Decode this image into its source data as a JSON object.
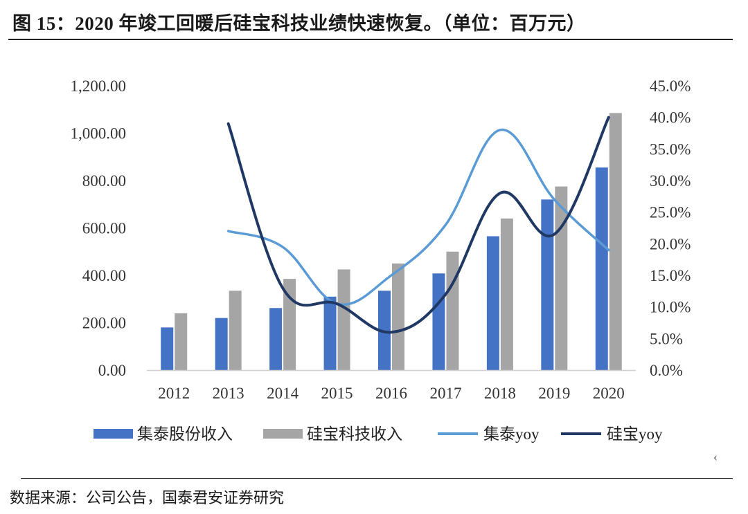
{
  "header": {
    "title": "图 15：2020 年竣工回暖后硅宝科技业绩快速恢复。（单位：百万元）"
  },
  "footer": {
    "source": "数据来源：公司公告，国泰君安证券研究",
    "mark": "‹"
  },
  "colors": {
    "jitai_bar": "#4472c4",
    "guibao_bar": "#a5a5a5",
    "jitai_line": "#5b9bd5",
    "guibao_line": "#203864"
  },
  "chart_data": {
    "type": "bar",
    "categories": [
      "2012",
      "2013",
      "2014",
      "2015",
      "2016",
      "2017",
      "2018",
      "2019",
      "2020"
    ],
    "y_left": {
      "range": [
        0,
        1200
      ],
      "ticks": [
        0,
        200,
        400,
        600,
        800,
        1000,
        1200
      ],
      "tick_labels": [
        "0.00",
        "200.00",
        "400.00",
        "600.00",
        "800.00",
        "1,000.00",
        "1,200.00"
      ]
    },
    "y_right": {
      "range": [
        0,
        45
      ],
      "ticks": [
        0,
        5,
        10,
        15,
        20,
        25,
        30,
        35,
        40,
        45
      ],
      "tick_labels": [
        "0.0%",
        "5.0%",
        "10.0%",
        "15.0%",
        "20.0%",
        "25.0%",
        "30.0%",
        "35.0%",
        "40.0%",
        "45.0%"
      ]
    },
    "series": [
      {
        "name": "集泰股份收入",
        "type": "bar",
        "axis": "left",
        "values": [
          180,
          220,
          262,
          310,
          335,
          408,
          565,
          720,
          855
        ]
      },
      {
        "name": "硅宝科技收入",
        "type": "bar",
        "axis": "left",
        "values": [
          240,
          335,
          385,
          425,
          450,
          500,
          640,
          775,
          1085
        ]
      },
      {
        "name": "集泰yoy",
        "type": "line",
        "axis": "right",
        "values": [
          null,
          22.0,
          19.5,
          10.5,
          15.0,
          23.0,
          38.0,
          27.0,
          19.0
        ]
      },
      {
        "name": "硅宝yoy",
        "type": "line",
        "axis": "right",
        "values": [
          null,
          39.0,
          13.0,
          10.5,
          6.0,
          12.0,
          28.0,
          21.5,
          40.0
        ]
      }
    ],
    "grid": false,
    "legend_position": "bottom"
  }
}
